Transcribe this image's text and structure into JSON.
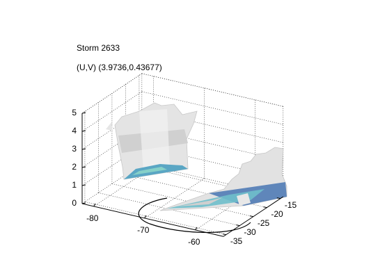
{
  "chart_data": {
    "type": "isosurface3d",
    "title": "Storm 2633",
    "subtitle": "(U,V) (3.9736,0.43677)",
    "xlim": [
      -82.3,
      -54.5
    ],
    "xticks": [
      -80,
      -70,
      -60
    ],
    "ylim": [
      -36,
      -14
    ],
    "yticks": [
      -35,
      -30,
      -25,
      -20,
      -15
    ],
    "zlim": [
      0,
      5
    ],
    "zticks": [
      0,
      1,
      2,
      3,
      4,
      5
    ],
    "grid": true
  }
}
